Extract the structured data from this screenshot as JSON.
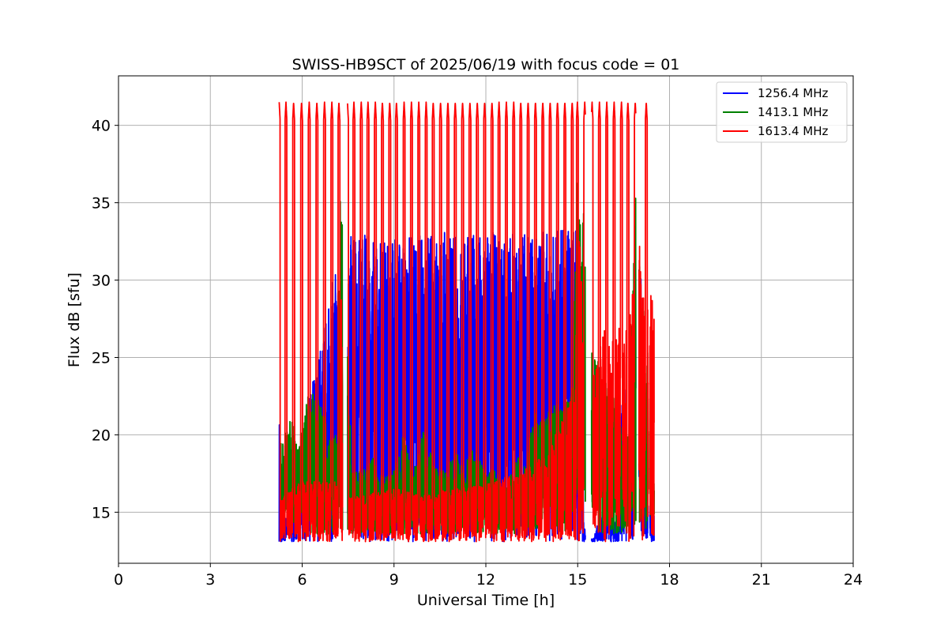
{
  "chart_data": {
    "type": "line",
    "title": "SWISS-HB9SCT of 2025/06/19 with focus code = 01",
    "xlabel": "Universal Time [h]",
    "ylabel": "Flux dB [sfu]",
    "xlim": [
      0,
      24
    ],
    "ylim": [
      11.7,
      43.2
    ],
    "xticks": [
      0,
      3,
      6,
      9,
      12,
      15,
      18,
      21,
      24
    ],
    "yticks": [
      15,
      20,
      25,
      30,
      35,
      40
    ],
    "grid": true,
    "legend_position": "top-right",
    "series": [
      {
        "name": "1256.4 MHz",
        "color": "#0000ff",
        "floor": 13.1,
        "points": [
          [
            5.25,
            22.0
          ],
          [
            5.3,
            13.1
          ],
          [
            7.3,
            33.0
          ],
          [
            7.35,
            32.8
          ],
          [
            7.45,
            32.9
          ],
          [
            15.0,
            33.3
          ],
          [
            15.1,
            33.2
          ],
          [
            15.2,
            14.0
          ],
          [
            15.5,
            13.2
          ],
          [
            16.0,
            16.5
          ],
          [
            16.3,
            13.5
          ],
          [
            16.5,
            25.5
          ],
          [
            16.7,
            15.5
          ],
          [
            16.9,
            33.5
          ],
          [
            17.0,
            33.5
          ],
          [
            17.4,
            13.8
          ],
          [
            17.5,
            16.0
          ]
        ]
      },
      {
        "name": "1413.1 MHz",
        "color": "#008000",
        "floor": 13.6,
        "points": [
          [
            5.3,
            19.5
          ],
          [
            5.6,
            21.4
          ],
          [
            5.9,
            19.6
          ],
          [
            6.2,
            23.0
          ],
          [
            6.5,
            22.7
          ],
          [
            6.9,
            20.0
          ],
          [
            7.15,
            20.1
          ],
          [
            7.25,
            36.4
          ],
          [
            7.3,
            34.4
          ],
          [
            7.45,
            34.2
          ],
          [
            7.6,
            17.5
          ],
          [
            8.0,
            17.8
          ],
          [
            8.3,
            18.6
          ],
          [
            8.7,
            17.2
          ],
          [
            9.0,
            17.7
          ],
          [
            9.3,
            20.2
          ],
          [
            9.6,
            17.4
          ],
          [
            10.0,
            20.5
          ],
          [
            10.3,
            18.2
          ],
          [
            10.7,
            17.6
          ],
          [
            11.0,
            19.0
          ],
          [
            11.3,
            18.0
          ],
          [
            11.6,
            19.2
          ],
          [
            12.0,
            17.5
          ],
          [
            12.3,
            17.9
          ],
          [
            12.6,
            16.5
          ],
          [
            13.0,
            18.7
          ],
          [
            13.3,
            17.9
          ],
          [
            13.6,
            21.8
          ],
          [
            13.9,
            20.9
          ],
          [
            14.2,
            22.2
          ],
          [
            14.5,
            22.0
          ],
          [
            14.8,
            23.0
          ],
          [
            15.0,
            37.2
          ],
          [
            15.05,
            34.5
          ],
          [
            15.2,
            34.5
          ],
          [
            15.5,
            25.0
          ],
          [
            15.8,
            24.8
          ],
          [
            16.0,
            23.0
          ],
          [
            16.3,
            22.5
          ],
          [
            16.6,
            17.6
          ],
          [
            16.9,
            36.7
          ],
          [
            17.0,
            34.4
          ],
          [
            17.2,
            26.4
          ],
          [
            17.4,
            25.6
          ],
          [
            17.5,
            18.3
          ]
        ]
      },
      {
        "name": "1613.4 MHz",
        "color": "#ff0000",
        "floor": 13.1,
        "points": [
          [
            5.25,
            13.1
          ],
          [
            5.3,
            16.0
          ],
          [
            6.0,
            17.0
          ],
          [
            6.5,
            17.0
          ],
          [
            7.0,
            17.0
          ],
          [
            7.2,
            17.0
          ],
          [
            7.3,
            32.8
          ],
          [
            7.45,
            32.7
          ],
          [
            7.5,
            16.0
          ],
          [
            8.0,
            16.2
          ],
          [
            9.0,
            16.5
          ],
          [
            10.0,
            16.3
          ],
          [
            11.0,
            16.5
          ],
          [
            12.0,
            16.8
          ],
          [
            13.0,
            17.5
          ],
          [
            13.5,
            18.0
          ],
          [
            14.0,
            19.0
          ],
          [
            14.5,
            21.0
          ],
          [
            14.9,
            23.0
          ],
          [
            15.0,
            33.0
          ],
          [
            15.2,
            32.9
          ],
          [
            15.3,
            22.5
          ],
          [
            15.5,
            23.5
          ],
          [
            15.8,
            27.0
          ],
          [
            16.0,
            26.5
          ],
          [
            16.2,
            26.0
          ],
          [
            16.5,
            27.8
          ],
          [
            16.7,
            27.8
          ],
          [
            16.9,
            33.0
          ],
          [
            17.0,
            33.0
          ],
          [
            17.2,
            28.3
          ],
          [
            17.4,
            29.5
          ],
          [
            17.5,
            27.5
          ]
        ]
      }
    ],
    "spikes": {
      "peak": 41.5,
      "times": [
        5.25,
        5.47,
        5.72,
        5.98,
        6.23,
        6.48,
        6.73,
        6.97,
        7.2,
        7.48,
        7.69,
        7.93,
        8.15,
        8.39,
        8.62,
        8.86,
        9.08,
        9.33,
        9.57,
        9.81,
        10.05,
        10.28,
        10.52,
        10.76,
        11.0,
        11.24,
        11.48,
        11.72,
        11.96,
        12.2,
        12.43,
        12.67,
        12.91,
        13.14,
        13.38,
        13.62,
        13.86,
        14.1,
        14.34,
        14.58,
        14.82,
        14.99,
        15.23,
        15.47,
        15.71,
        15.95,
        16.19,
        16.43,
        16.64,
        16.88,
        17.24
      ]
    },
    "gaps": [
      [
        7.32,
        7.48
      ],
      [
        15.25,
        15.45
      ],
      [
        16.9,
        17.0
      ],
      [
        17.3,
        17.35
      ]
    ]
  }
}
